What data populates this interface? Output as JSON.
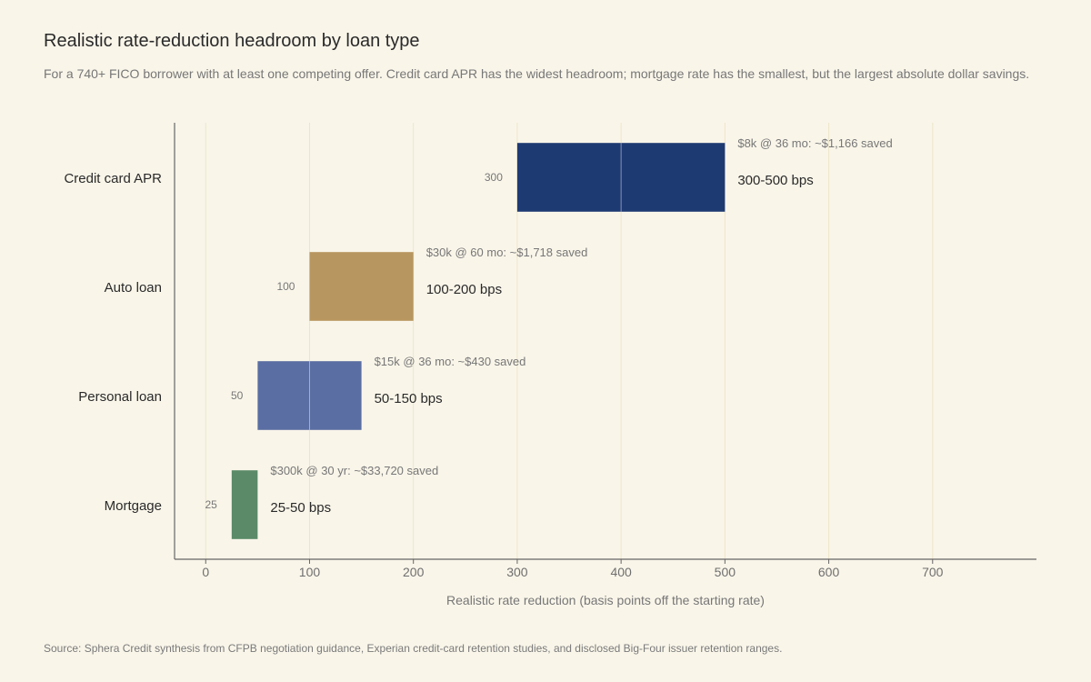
{
  "title": "Realistic rate-reduction headroom by loan type",
  "subtitle": "For a 740+ FICO borrower with at least one competing offer. Credit card APR has the widest headroom; mortgage rate has the smallest, but the largest absolute dollar savings.",
  "source": "Source: Sphera Credit synthesis from CFPB negotiation guidance, Experian credit-card retention studies, and disclosed Big-Four issuer retention ranges.",
  "chart_data": {
    "type": "bar",
    "orientation": "horizontal-range",
    "title": "Realistic rate-reduction headroom by loan type",
    "xlabel": "Realistic rate reduction (basis points off the starting rate)",
    "ylabel": "",
    "xlim": [
      -30,
      800
    ],
    "xticks": [
      0,
      100,
      200,
      300,
      400,
      500,
      600,
      700
    ],
    "grid": "vertical",
    "categories": [
      "Credit card APR",
      "Auto loan",
      "Personal loan",
      "Mortgage"
    ],
    "series": [
      {
        "values": [
          {
            "category": "Credit card APR",
            "low": 300,
            "high": 500,
            "start_label": "300",
            "range_label": "300-500 bps",
            "note": "$8k @ 36 mo: ~$1,166 saved",
            "color": "#1e3a73"
          },
          {
            "category": "Auto loan",
            "low": 100,
            "high": 200,
            "start_label": "100",
            "range_label": "100-200 bps",
            "note": "$30k @ 60 mo: ~$1,718 saved",
            "color": "#b8965f"
          },
          {
            "category": "Personal loan",
            "low": 50,
            "high": 150,
            "start_label": "50",
            "range_label": "50-150 bps",
            "note": "$15k @ 36 mo: ~$430 saved",
            "color": "#5a6ea3"
          },
          {
            "category": "Mortgage",
            "low": 25,
            "high": 50,
            "start_label": "25",
            "range_label": "25-50 bps",
            "note": "$300k @ 30 yr: ~$33,720 saved",
            "color": "#5a8a68"
          }
        ]
      }
    ],
    "colors": {
      "grid": "#ece6c9",
      "axis": "#666666",
      "background": "#f9f5e9"
    }
  }
}
